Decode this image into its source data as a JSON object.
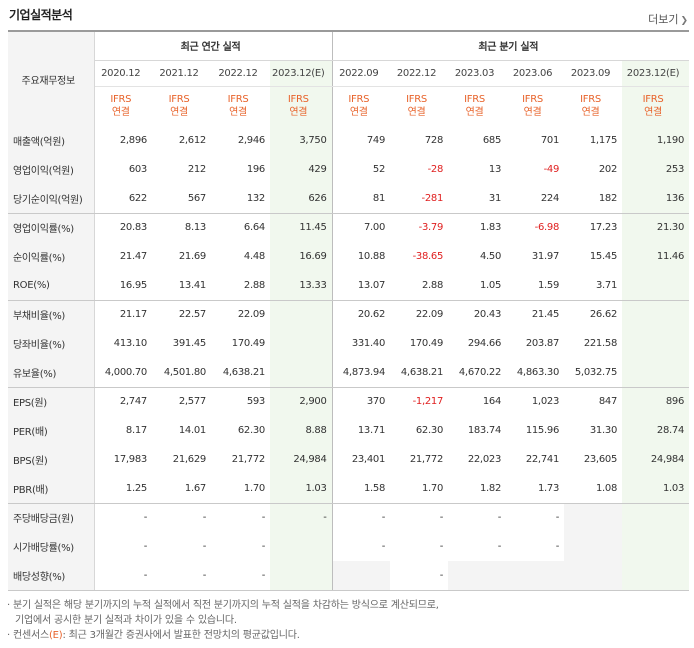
{
  "header": {
    "title": "기업실적분석",
    "more_label": "더보기",
    "more_icon": "chevron-right-icon"
  },
  "table": {
    "corner_label": "주요재무정보",
    "group_annual": "최근 연간 실적",
    "group_quarter": "최근 분기 실적",
    "periods": [
      "2020.12",
      "2021.12",
      "2022.12",
      "2023.12(E)",
      "2022.09",
      "2022.12",
      "2023.03",
      "2023.06",
      "2023.09",
      "2023.12(E)"
    ],
    "basis_line1": "IFRS",
    "basis_line2": "연결",
    "rows": [
      {
        "label": "매출액(억원)",
        "values": [
          "2,896",
          "2,612",
          "2,946",
          "3,750",
          "749",
          "728",
          "685",
          "701",
          "1,175",
          "1,190"
        ]
      },
      {
        "label": "영업이익(억원)",
        "values": [
          "603",
          "212",
          "196",
          "429",
          "52",
          "-28",
          "13",
          "-49",
          "202",
          "253"
        ]
      },
      {
        "label": "당기순이익(억원)",
        "values": [
          "622",
          "567",
          "132",
          "626",
          "81",
          "-281",
          "31",
          "224",
          "182",
          "136"
        ]
      },
      {
        "label": "영업이익률(%)",
        "values": [
          "20.83",
          "8.13",
          "6.64",
          "11.45",
          "7.00",
          "-3.79",
          "1.83",
          "-6.98",
          "17.23",
          "21.30"
        ]
      },
      {
        "label": "순이익률(%)",
        "values": [
          "21.47",
          "21.69",
          "4.48",
          "16.69",
          "10.88",
          "-38.65",
          "4.50",
          "31.97",
          "15.45",
          "11.46"
        ]
      },
      {
        "label": "ROE(%)",
        "values": [
          "16.95",
          "13.41",
          "2.88",
          "13.33",
          "13.07",
          "2.88",
          "1.05",
          "1.59",
          "3.71",
          ""
        ]
      },
      {
        "label": "부채비율(%)",
        "values": [
          "21.17",
          "22.57",
          "22.09",
          "",
          "20.62",
          "22.09",
          "20.43",
          "21.45",
          "26.62",
          ""
        ]
      },
      {
        "label": "당좌비율(%)",
        "values": [
          "413.10",
          "391.45",
          "170.49",
          "",
          "331.40",
          "170.49",
          "294.66",
          "203.87",
          "221.58",
          ""
        ]
      },
      {
        "label": "유보율(%)",
        "values": [
          "4,000.70",
          "4,501.80",
          "4,638.21",
          "",
          "4,873.94",
          "4,638.21",
          "4,670.22",
          "4,863.30",
          "5,032.75",
          ""
        ]
      },
      {
        "label": "EPS(원)",
        "values": [
          "2,747",
          "2,577",
          "593",
          "2,900",
          "370",
          "-1,217",
          "164",
          "1,023",
          "847",
          "896"
        ]
      },
      {
        "label": "PER(배)",
        "values": [
          "8.17",
          "14.01",
          "62.30",
          "8.88",
          "13.71",
          "62.30",
          "183.74",
          "115.96",
          "31.30",
          "28.74"
        ]
      },
      {
        "label": "BPS(원)",
        "values": [
          "17,983",
          "21,629",
          "21,772",
          "24,984",
          "23,401",
          "21,772",
          "22,023",
          "22,741",
          "23,605",
          "24,984"
        ]
      },
      {
        "label": "PBR(배)",
        "values": [
          "1.25",
          "1.67",
          "1.70",
          "1.03",
          "1.58",
          "1.70",
          "1.82",
          "1.73",
          "1.08",
          "1.03"
        ]
      },
      {
        "label": "주당배당금(원)",
        "values": [
          "-",
          "-",
          "-",
          "-",
          "-",
          "-",
          "-",
          "-",
          "",
          ""
        ]
      },
      {
        "label": "시가배당률(%)",
        "values": [
          "-",
          "-",
          "-",
          "",
          "-",
          "-",
          "-",
          "-",
          "",
          ""
        ]
      },
      {
        "label": "배당성향(%)",
        "values": [
          "-",
          "-",
          "-",
          "",
          "",
          "-",
          "",
          "",
          "",
          ""
        ]
      }
    ]
  },
  "notes": {
    "line1": "· 분기 실적은 해당 분기까지의 누적 실적에서 직전 분기까지의 누적 실적을 차감하는 방식으로 계산되므로,",
    "line2": "기업에서 공시한 분기 실적과 차이가 있을 수 있습니다.",
    "line3_prefix": "· 컨센서스",
    "line3_mark": "(E)",
    "line3_suffix": ": 최근 3개월간 증권사에서 발표한 전망치의 평균값입니다."
  },
  "colors": {
    "ifrs": "#e8632b",
    "negative": "#e02020",
    "estimate_bg": "#f1f8ee",
    "rowhead_bg": "#f4f4f4"
  }
}
